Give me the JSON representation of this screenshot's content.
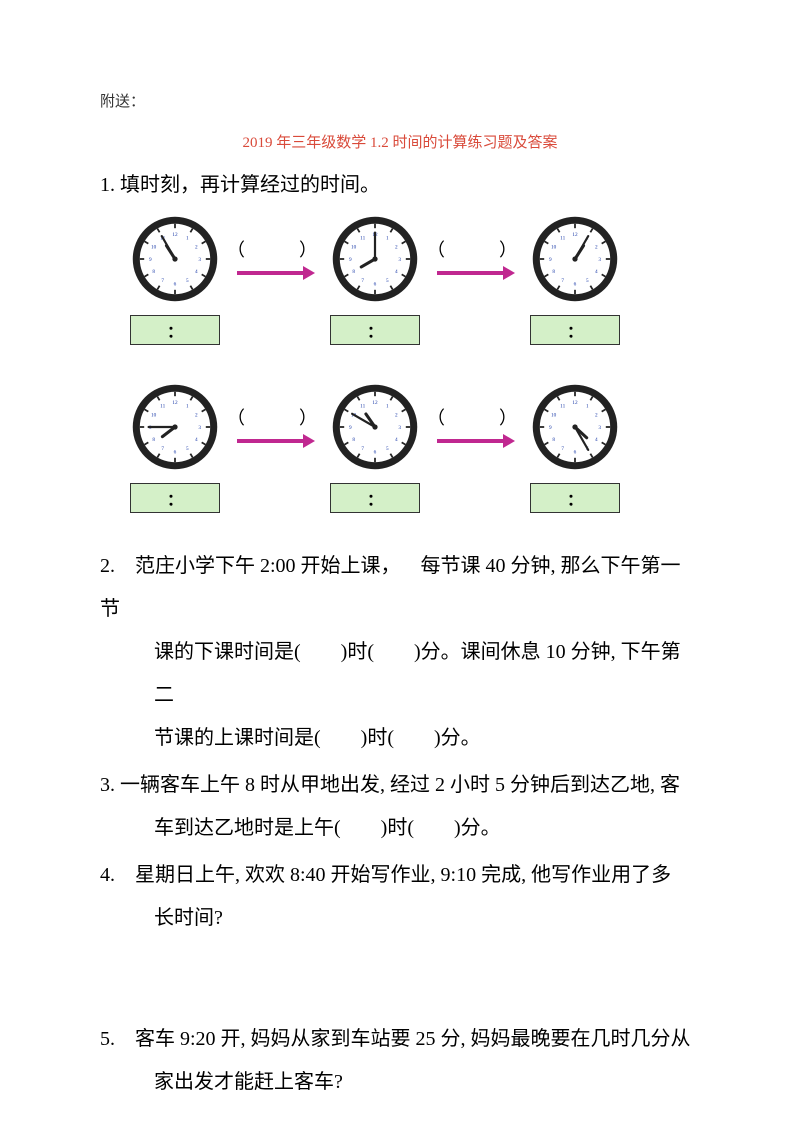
{
  "header_label": "附送：",
  "title": "2019 年三年级数学 1.2 时间的计算练习题及答案",
  "q1_title": "1. 填时刻，再计算经过的时间。",
  "paren": "（　　）",
  "colon": "：",
  "clocks": {
    "row1": [
      {
        "hour": 10,
        "min": 55
      },
      {
        "hour": 8,
        "min": 0
      },
      {
        "hour": 1,
        "min": 5
      }
    ],
    "row2": [
      {
        "hour": 7,
        "min": 45
      },
      {
        "hour": 10,
        "min": 50
      },
      {
        "hour": 4,
        "min": 25
      }
    ]
  },
  "clock_style": {
    "face_fill": "#ffffff",
    "rim_fill": "#222222",
    "tick_color": "#222222",
    "hand_color": "#222222",
    "numeral_color": "#1a3aa8",
    "numeral_size": 6
  },
  "arrow_color": "#c02890",
  "timebox": {
    "bg": "#d4f0c8",
    "border": "#333333"
  },
  "q2": {
    "l1": "2. 范庄小学下午 2:00 开始上课， 每节课 40 分钟, 那么下午第一节",
    "l2": "课的下课时间是(　　)时(　　)分。课间休息 10 分钟, 下午第二",
    "l3": "节课的上课时间是(　　)时(　　)分。"
  },
  "q3": {
    "l1": "3. 一辆客车上午 8 时从甲地出发, 经过 2 小时 5 分钟后到达乙地, 客",
    "l2": "车到达乙地时是上午(　　)时(　　)分。"
  },
  "q4": {
    "l1": "4. 星期日上午, 欢欢 8:40 开始写作业, 9:10 完成, 他写作业用了多",
    "l2": "长时间?"
  },
  "q5": {
    "l1": "5. 客车 9:20 开, 妈妈从家到车站要 25 分, 妈妈最晚要在几时几分从",
    "l2": "家出发才能赶上客车?"
  }
}
